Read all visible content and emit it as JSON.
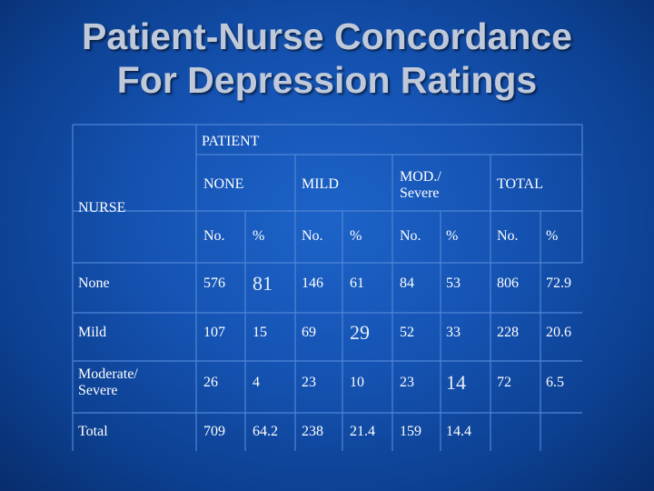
{
  "title": {
    "line1": "Patient-Nurse Concordance",
    "line2": "For Depression Ratings"
  },
  "table": {
    "patient_header": "PATIENT",
    "nurse_header": "NURSE",
    "col_groups": [
      "NONE",
      "MILD",
      "MOD./",
      "Severe",
      "TOTAL"
    ],
    "sub_headers": [
      "No.",
      "%",
      "No.",
      "%",
      "No.",
      "%",
      "No.",
      "%"
    ],
    "rows": [
      {
        "label": "None",
        "cells": [
          "576",
          "81",
          "146",
          "61",
          "84",
          "53",
          "806",
          "72.9"
        ]
      },
      {
        "label": "Mild",
        "cells": [
          "107",
          "15",
          "69",
          "29",
          "52",
          "33",
          "228",
          "20.6"
        ]
      },
      {
        "label_line1": "Moderate/",
        "label_line2": "Severe",
        "cells": [
          "26",
          "4",
          "23",
          "10",
          "23",
          "14",
          "72",
          "6.5"
        ]
      },
      {
        "label": "Total",
        "cells": [
          "709",
          "64.2",
          "238",
          "21.4",
          "159",
          "14.4"
        ]
      }
    ]
  }
}
